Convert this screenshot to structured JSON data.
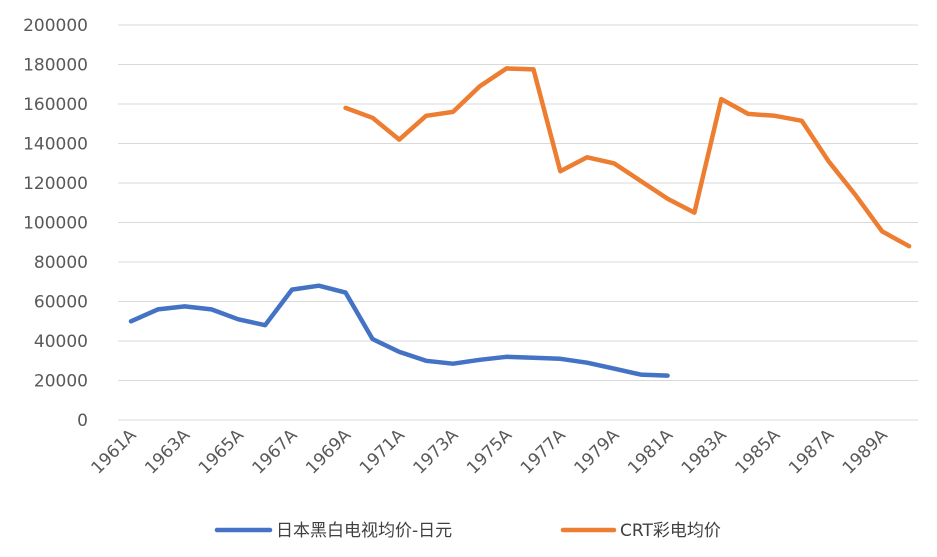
{
  "chart_data": {
    "type": "line",
    "title": "",
    "xlabel": "",
    "ylabel": "",
    "ylim": [
      0,
      200000
    ],
    "yticks": [
      0,
      20000,
      40000,
      60000,
      80000,
      100000,
      120000,
      140000,
      160000,
      180000,
      200000
    ],
    "ytick_labels": [
      "0",
      "20000",
      "40000",
      "60000",
      "80000",
      "100000",
      "120000",
      "140000",
      "160000",
      "180000",
      "200000"
    ],
    "categories": [
      "1961A",
      "1962A",
      "1963A",
      "1964A",
      "1965A",
      "1966A",
      "1967A",
      "1968A",
      "1969A",
      "1970A",
      "1971A",
      "1972A",
      "1973A",
      "1974A",
      "1975A",
      "1976A",
      "1977A",
      "1978A",
      "1979A",
      "1980A",
      "1981A",
      "1982A",
      "1983A",
      "1984A",
      "1985A",
      "1986A",
      "1987A",
      "1988A",
      "1989A",
      "1990A"
    ],
    "xtick_labels": [
      "1961A",
      "1963A",
      "1965A",
      "1967A",
      "1969A",
      "1971A",
      "1973A",
      "1975A",
      "1977A",
      "1979A",
      "1981A",
      "1983A",
      "1985A",
      "1987A",
      "1989A"
    ],
    "grid": "horizontal",
    "legend_position": "bottom",
    "series": [
      {
        "name": "日本黑白电视均价-日元",
        "color": "#4472C4",
        "values": [
          50000,
          56000,
          57500,
          56000,
          51000,
          48000,
          66000,
          68000,
          64500,
          41000,
          34500,
          30000,
          28500,
          30500,
          32000,
          31500,
          31000,
          29000,
          26000,
          23000,
          22500,
          null,
          null,
          null,
          null,
          null,
          null,
          null,
          null,
          null
        ]
      },
      {
        "name": "CRT彩电均价",
        "color": "#ED7D31",
        "values": [
          null,
          null,
          null,
          null,
          null,
          null,
          null,
          null,
          158000,
          153000,
          142000,
          154000,
          156000,
          169000,
          178000,
          177500,
          126000,
          133000,
          130000,
          121000,
          112000,
          105000,
          162500,
          155000,
          154000,
          151500,
          131000,
          114000,
          95500,
          88000
        ]
      }
    ]
  }
}
